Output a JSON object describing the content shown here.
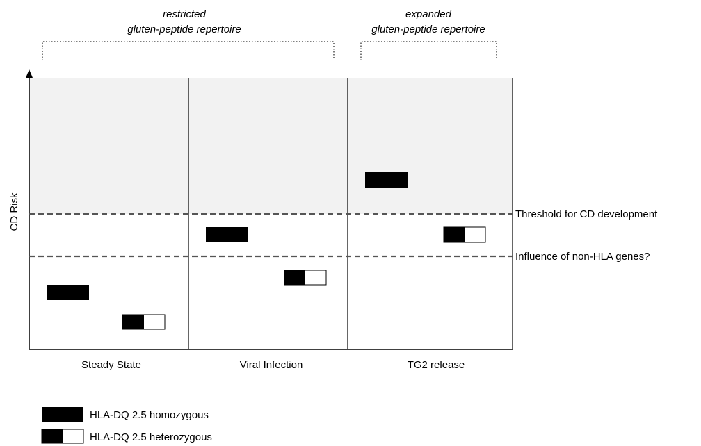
{
  "header": {
    "restricted_line1": "restricted",
    "restricted_line2": "gluten-peptide repertoire",
    "expanded_line1": "expanded",
    "expanded_line2": "gluten-peptide repertoire"
  },
  "axis": {
    "y_label": "CD Risk"
  },
  "columns": [
    "Steady State",
    "Viral Infection",
    "TG2 release"
  ],
  "thresholds": {
    "upper": "Threshold for CD development",
    "lower": "Influence of non-HLA genes?"
  },
  "legend": {
    "homozygous": "HLA-DQ 2.5 homozygous",
    "heterozygous": "HLA-DQ 2.5 heterozygous"
  },
  "colors": {
    "shaded_region": "#f2f2f2",
    "line": "#000000",
    "dashed": "#555555",
    "bar_fill": "#000000",
    "bar_empty": "#ffffff"
  }
}
